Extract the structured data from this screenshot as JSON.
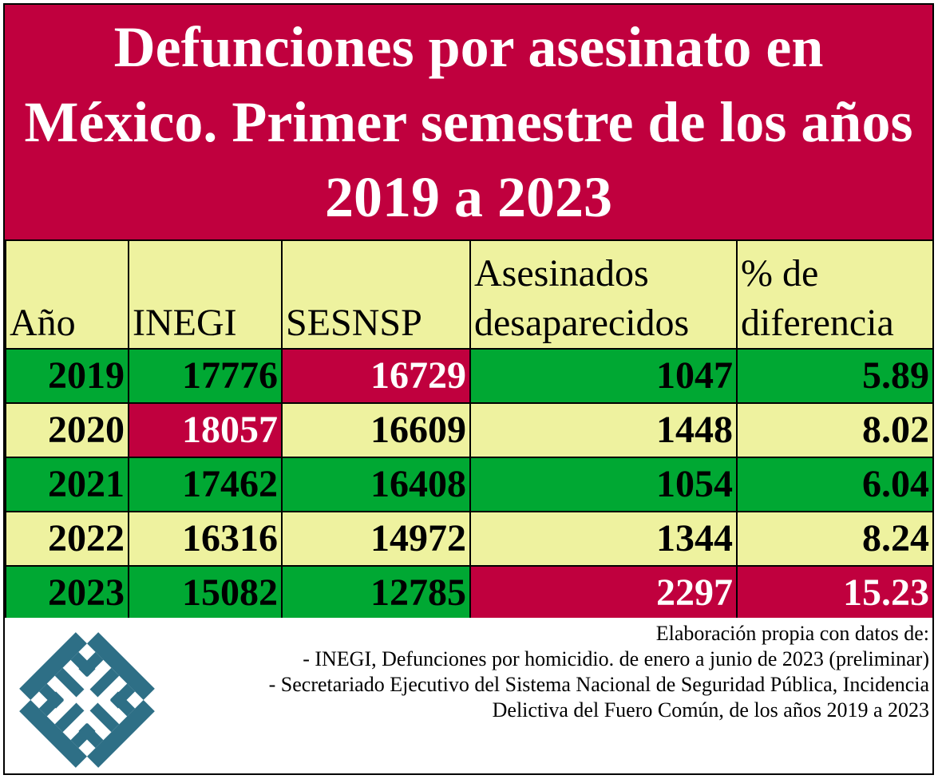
{
  "chart_data": {
    "type": "table",
    "title": "Defunciones por asesinato en México. Primer semestre de los años 2019 a 2023",
    "columns": [
      "Año",
      "INEGI",
      "SESNSP",
      "Asesinados desaparecidos",
      "% de diferencia"
    ],
    "rows": [
      {
        "year": "2019",
        "inegi": "17776",
        "sesnsp": "16729",
        "desaparecidos": "1047",
        "pct": "5.89",
        "highlight": "sesnsp"
      },
      {
        "year": "2020",
        "inegi": "18057",
        "sesnsp": "16609",
        "desaparecidos": "1448",
        "pct": "8.02",
        "highlight": "inegi"
      },
      {
        "year": "2021",
        "inegi": "17462",
        "sesnsp": "16408",
        "desaparecidos": "1054",
        "pct": "6.04",
        "highlight": ""
      },
      {
        "year": "2022",
        "inegi": "16316",
        "sesnsp": "14972",
        "desaparecidos": "1344",
        "pct": "8.24",
        "highlight": ""
      },
      {
        "year": "2023",
        "inegi": "15082",
        "sesnsp": "12785",
        "desaparecidos": "2297",
        "pct": "15.23",
        "highlight": "desaparecidos_pct"
      }
    ]
  },
  "header": {
    "year": "Año",
    "inegi": "INEGI",
    "sesnsp": "SESNSP",
    "desaparecidos_1": "Asesinados",
    "desaparecidos_2": "desaparecidos",
    "pct_1": "% de",
    "pct_2": "diferencia"
  },
  "footer": {
    "sources": [
      "Elaboración propia con datos de:",
      "- INEGI, Defunciones por homicidio. de enero a junio de 2023 (preliminar)",
      "- Secretariado Ejecutivo del Sistema Nacional de Seguridad Pública, Incidencia",
      "Delictiva del Fuero Común, de los años 2019 a 2023"
    ],
    "logo_icon": "mtm-logo-icon"
  },
  "colors": {
    "title_bg": "#c0003e",
    "green": "#00a833",
    "yellow": "#eef29f",
    "red": "#c0003e",
    "logo": "#2e6f86"
  }
}
